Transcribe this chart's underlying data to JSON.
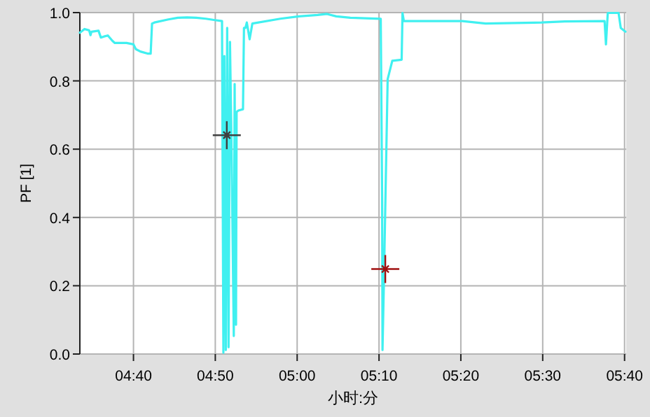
{
  "chart_data": {
    "type": "line",
    "xlabel": "小时:分",
    "ylabel": "PF [1]",
    "xlim": [
      4.5575,
      5.67
    ],
    "ylim": [
      0,
      1
    ],
    "xticks": [
      {
        "value": 4.6667,
        "label": "04:40"
      },
      {
        "value": 4.8333,
        "label": "04:50"
      },
      {
        "value": 5,
        "label": "05:00"
      },
      {
        "value": 5.1667,
        "label": "05:10"
      },
      {
        "value": 5.3333,
        "label": "05:20"
      },
      {
        "value": 5.5,
        "label": "05:30"
      },
      {
        "value": 5.6667,
        "label": "05:40"
      }
    ],
    "yticks": [
      {
        "value": 0,
        "label": "0.0"
      },
      {
        "value": 0.2,
        "label": "0.2"
      },
      {
        "value": 0.4,
        "label": "0.4"
      },
      {
        "value": 0.6,
        "label": "0.6"
      },
      {
        "value": 0.8,
        "label": "0.8"
      },
      {
        "value": 1,
        "label": "1.0"
      }
    ],
    "grid": true,
    "marker": "none",
    "line_style": "solid",
    "series": [
      {
        "color": "#40f0f0",
        "x": [
          4.5575,
          4.567,
          4.5764,
          4.5792,
          4.5812,
          4.5955,
          4.6003,
          4.6068,
          4.6145,
          4.624,
          4.6288,
          4.6525,
          4.6667,
          4.6715,
          4.6808,
          4.6952,
          4.7017,
          4.7045,
          4.7093,
          4.7378,
          4.757,
          4.7758,
          4.7948,
          4.814,
          4.8328,
          4.847,
          4.8498,
          4.8518,
          4.8547,
          4.8575,
          4.8603,
          4.8632,
          4.8662,
          4.871,
          4.8727,
          4.8747,
          4.8755,
          4.8767,
          4.8803,
          4.8897,
          4.8917,
          4.8947,
          4.8975,
          4.9032,
          4.9088,
          4.9658,
          5.0037,
          5.0418,
          5.0607,
          5.0798,
          5.1083,
          5.1702,
          5.173,
          5.1738,
          5.1767,
          5.1843,
          5.1937,
          5.2128,
          5.2145,
          5.2173,
          5.2602,
          5.3362,
          5.3838,
          5.4977,
          5.545,
          5.626,
          5.6288,
          5.6325,
          5.6545,
          5.659,
          5.6685
        ],
        "values": [
          0.941,
          0.952,
          0.948,
          0.934,
          0.944,
          0.947,
          0.927,
          0.93,
          0.933,
          0.917,
          0.911,
          0.911,
          0.907,
          0.893,
          0.886,
          0.88,
          0.88,
          0.968,
          0.971,
          0.98,
          0.985,
          0.986,
          0.985,
          0.982,
          0.978,
          0.975,
          0.004,
          0.873,
          0.012,
          0.955,
          0.02,
          0.914,
          0.627,
          0.053,
          0.791,
          0.217,
          0.086,
          0.709,
          0.713,
          0.717,
          0.955,
          0.955,
          0.971,
          0.922,
          0.968,
          0.982,
          0.989,
          0.993,
          0.996,
          0.989,
          0.985,
          0.982,
          0.463,
          0.012,
          0.217,
          0.805,
          0.859,
          0.862,
          0.999,
          0.975,
          0.975,
          0.975,
          0.968,
          0.971,
          0.974,
          0.975,
          0.907,
          0.999,
          0.999,
          0.955,
          0.944
        ]
      },
      {
        "type": "scatter",
        "marker": "cross",
        "x": [
          4.8567,
          5.1795
        ],
        "values": [
          0.641,
          0.249
        ],
        "colors": [
          "#404040",
          "#a01010"
        ]
      }
    ]
  }
}
